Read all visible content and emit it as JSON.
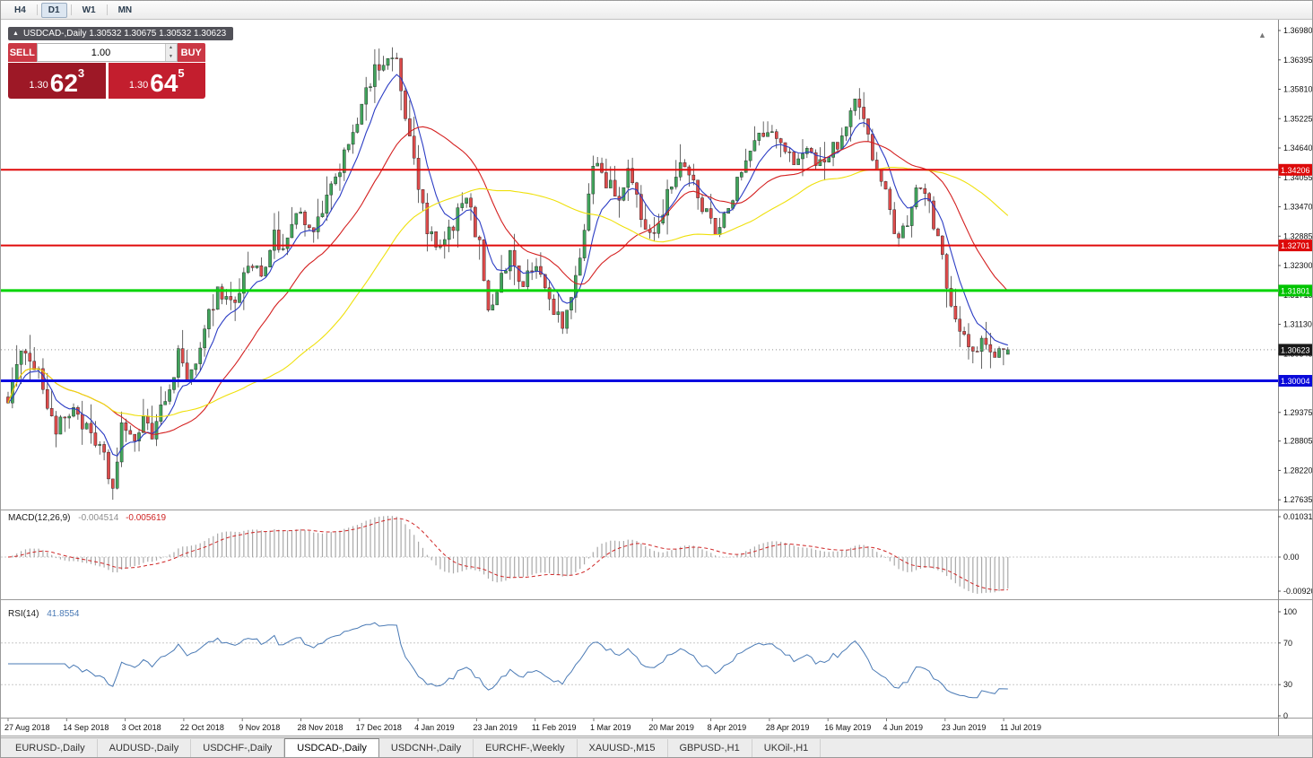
{
  "toolbar": {
    "timeframes": [
      {
        "label": "H4",
        "active": false
      },
      {
        "label": "D1",
        "active": true
      },
      {
        "label": "W1",
        "active": false
      },
      {
        "label": "MN",
        "active": false
      }
    ]
  },
  "chart": {
    "symbol": "USDCAD-",
    "period": "Daily",
    "title": "USDCAD-,Daily 1.30532 1.30675 1.30532 1.30623",
    "ohlc": {
      "open": "1.30532",
      "high": "1.30675",
      "low": "1.30532",
      "close": "1.30623"
    }
  },
  "trade_panel": {
    "sell_label": "SELL",
    "buy_label": "BUY",
    "volume": "1.00",
    "sell_price": {
      "big_prefix": "1.30",
      "pips": "62",
      "pipette": "3"
    },
    "buy_price": {
      "big_prefix": "1.30",
      "pips": "64",
      "pipette": "5"
    }
  },
  "price_axis": {
    "labels": [
      "1.36980",
      "1.36395",
      "1.35810",
      "1.35225",
      "1.34640",
      "1.34055",
      "1.33470",
      "1.32885",
      "1.32300",
      "1.31715",
      "1.31130",
      "1.30545",
      "1.29960",
      "1.29375",
      "1.28805",
      "1.28220",
      "1.27635"
    ],
    "tags": [
      {
        "name": "resistance-upper",
        "value": "1.34206",
        "price": 1.34206,
        "color": "#dd0a0a"
      },
      {
        "name": "resistance-lower",
        "value": "1.32701",
        "price": 1.32701,
        "color": "#dd0a0a"
      },
      {
        "name": "support-green",
        "value": "1.31801",
        "price": 1.31801,
        "color": "#00c400"
      },
      {
        "name": "current-bid",
        "value": "1.30623",
        "price": 1.30623,
        "color": "#1a1a1a"
      },
      {
        "name": "support-blue",
        "value": "1.30004",
        "price": 1.30004,
        "color": "#0a0ada"
      }
    ]
  },
  "macd_panel": {
    "label": "MACD(12,26,9)",
    "value": "-0.004514",
    "signal": "-0.005619",
    "axis": [
      "0.010311",
      "0.00",
      "-0.009203"
    ]
  },
  "rsi_panel": {
    "label": "RSI(14)",
    "value": "41.8554",
    "axis": [
      "100",
      "70",
      "30",
      "0"
    ],
    "levels": [
      70,
      30
    ]
  },
  "tabs": [
    {
      "label": "EURUSD-,Daily",
      "active": false
    },
    {
      "label": "AUDUSD-,Daily",
      "active": false
    },
    {
      "label": "USDCHF-,Daily",
      "active": false
    },
    {
      "label": "USDCAD-,Daily",
      "active": true
    },
    {
      "label": "USDCNH-,Daily",
      "active": false
    },
    {
      "label": "EURCHF-,Weekly",
      "active": false
    },
    {
      "label": "XAUUSD-,M15",
      "active": false
    },
    {
      "label": "GBPUSD-,H1",
      "active": false
    },
    {
      "label": "UKOil-,H1",
      "active": false
    }
  ],
  "chart_data": {
    "type": "candlestick",
    "symbol": "USDCAD",
    "timeframe": "Daily",
    "bars": 230,
    "y_range": [
      1.2747,
      1.3707
    ],
    "date_labels": [
      "27 Aug 2018",
      "14 Sep 2018",
      "3 Oct 2018",
      "22 Oct 2018",
      "9 Nov 2018",
      "28 Nov 2018",
      "17 Dec 2018",
      "4 Jan 2019",
      "23 Jan 2019",
      "11 Feb 2019",
      "1 Mar 2019",
      "20 Mar 2019",
      "8 Apr 2019",
      "28 Apr 2019",
      "16 May 2019",
      "4 Jun 2019",
      "23 Jun 2019",
      "11 Jul 2019"
    ],
    "price_anchors": [
      [
        0,
        1.297
      ],
      [
        4,
        1.307
      ],
      [
        7,
        1.3015
      ],
      [
        11,
        1.29
      ],
      [
        15,
        1.295
      ],
      [
        19,
        1.2885
      ],
      [
        22,
        1.2845
      ],
      [
        24,
        1.2782
      ],
      [
        26,
        1.2915
      ],
      [
        29,
        1.2865
      ],
      [
        31,
        1.294
      ],
      [
        33,
        1.289
      ],
      [
        37,
        1.2985
      ],
      [
        39,
        1.306
      ],
      [
        41,
        1.2985
      ],
      [
        45,
        1.311
      ],
      [
        48,
        1.318
      ],
      [
        52,
        1.3155
      ],
      [
        55,
        1.3235
      ],
      [
        58,
        1.321
      ],
      [
        61,
        1.3295
      ],
      [
        63,
        1.325
      ],
      [
        66,
        1.3335
      ],
      [
        69,
        1.3295
      ],
      [
        72,
        1.333
      ],
      [
        75,
        1.3405
      ],
      [
        78,
        1.348
      ],
      [
        81,
        1.3545
      ],
      [
        84,
        1.3615
      ],
      [
        87,
        1.365
      ],
      [
        89,
        1.3628
      ],
      [
        91,
        1.3525
      ],
      [
        94,
        1.339
      ],
      [
        96,
        1.3295
      ],
      [
        99,
        1.3258
      ],
      [
        102,
        1.3315
      ],
      [
        105,
        1.3365
      ],
      [
        108,
        1.3268
      ],
      [
        110,
        1.3148
      ],
      [
        112,
        1.3182
      ],
      [
        115,
        1.3252
      ],
      [
        118,
        1.3192
      ],
      [
        121,
        1.3232
      ],
      [
        124,
        1.3162
      ],
      [
        127,
        1.3108
      ],
      [
        130,
        1.3195
      ],
      [
        132,
        1.3305
      ],
      [
        134,
        1.344
      ],
      [
        137,
        1.3398
      ],
      [
        140,
        1.3368
      ],
      [
        142,
        1.3415
      ],
      [
        145,
        1.3328
      ],
      [
        148,
        1.3288
      ],
      [
        151,
        1.3375
      ],
      [
        154,
        1.3435
      ],
      [
        157,
        1.3392
      ],
      [
        160,
        1.3328
      ],
      [
        162,
        1.3302
      ],
      [
        165,
        1.3355
      ],
      [
        168,
        1.3415
      ],
      [
        171,
        1.3475
      ],
      [
        174,
        1.3505
      ],
      [
        177,
        1.3462
      ],
      [
        180,
        1.3438
      ],
      [
        183,
        1.3472
      ],
      [
        186,
        1.3428
      ],
      [
        189,
        1.3462
      ],
      [
        192,
        1.3502
      ],
      [
        194,
        1.3558
      ],
      [
        196,
        1.3528
      ],
      [
        199,
        1.3415
      ],
      [
        201,
        1.3368
      ],
      [
        203,
        1.3288
      ],
      [
        206,
        1.3325
      ],
      [
        209,
        1.3398
      ],
      [
        211,
        1.3358
      ],
      [
        213,
        1.3278
      ],
      [
        215,
        1.3198
      ],
      [
        217,
        1.3128
      ],
      [
        219,
        1.3082
      ],
      [
        221,
        1.3052
      ],
      [
        223,
        1.3082
      ],
      [
        225,
        1.3042
      ],
      [
        227,
        1.3068
      ],
      [
        229,
        1.30623
      ]
    ],
    "last_candle": {
      "open": 1.30532,
      "high": 1.30675,
      "low": 1.30532,
      "close": 1.30623
    },
    "colors": {
      "up": "#41a45c",
      "down": "#dd4b4b",
      "wick": "#222222"
    },
    "moving_averages": [
      {
        "type": "EMA",
        "period": 8,
        "color": "#2b3cc4"
      },
      {
        "type": "SMA",
        "period": 24,
        "color": "#d42020"
      },
      {
        "type": "SMA",
        "period": 55,
        "color": "#efe00a"
      }
    ],
    "horizontal_lines": [
      {
        "price": 1.34206,
        "color": "#e00a0a",
        "width": 2
      },
      {
        "price": 1.32701,
        "color": "#e00a0a",
        "width": 2
      },
      {
        "price": 1.31801,
        "color": "#00d400",
        "width": 3
      },
      {
        "price": 1.30004,
        "color": "#0a0ae0",
        "width": 3
      }
    ],
    "current_price_line": {
      "price": 1.30623,
      "color": "#909090",
      "style": "dotted"
    },
    "indicators": [
      {
        "name": "MACD",
        "params": [
          12,
          26,
          9
        ],
        "value": -0.004514,
        "signal": -0.005619,
        "axis_max": 0.010311,
        "axis_min": -0.009203
      },
      {
        "name": "RSI",
        "params": [
          14
        ],
        "value": 41.8554,
        "levels": [
          70,
          30
        ]
      }
    ]
  }
}
